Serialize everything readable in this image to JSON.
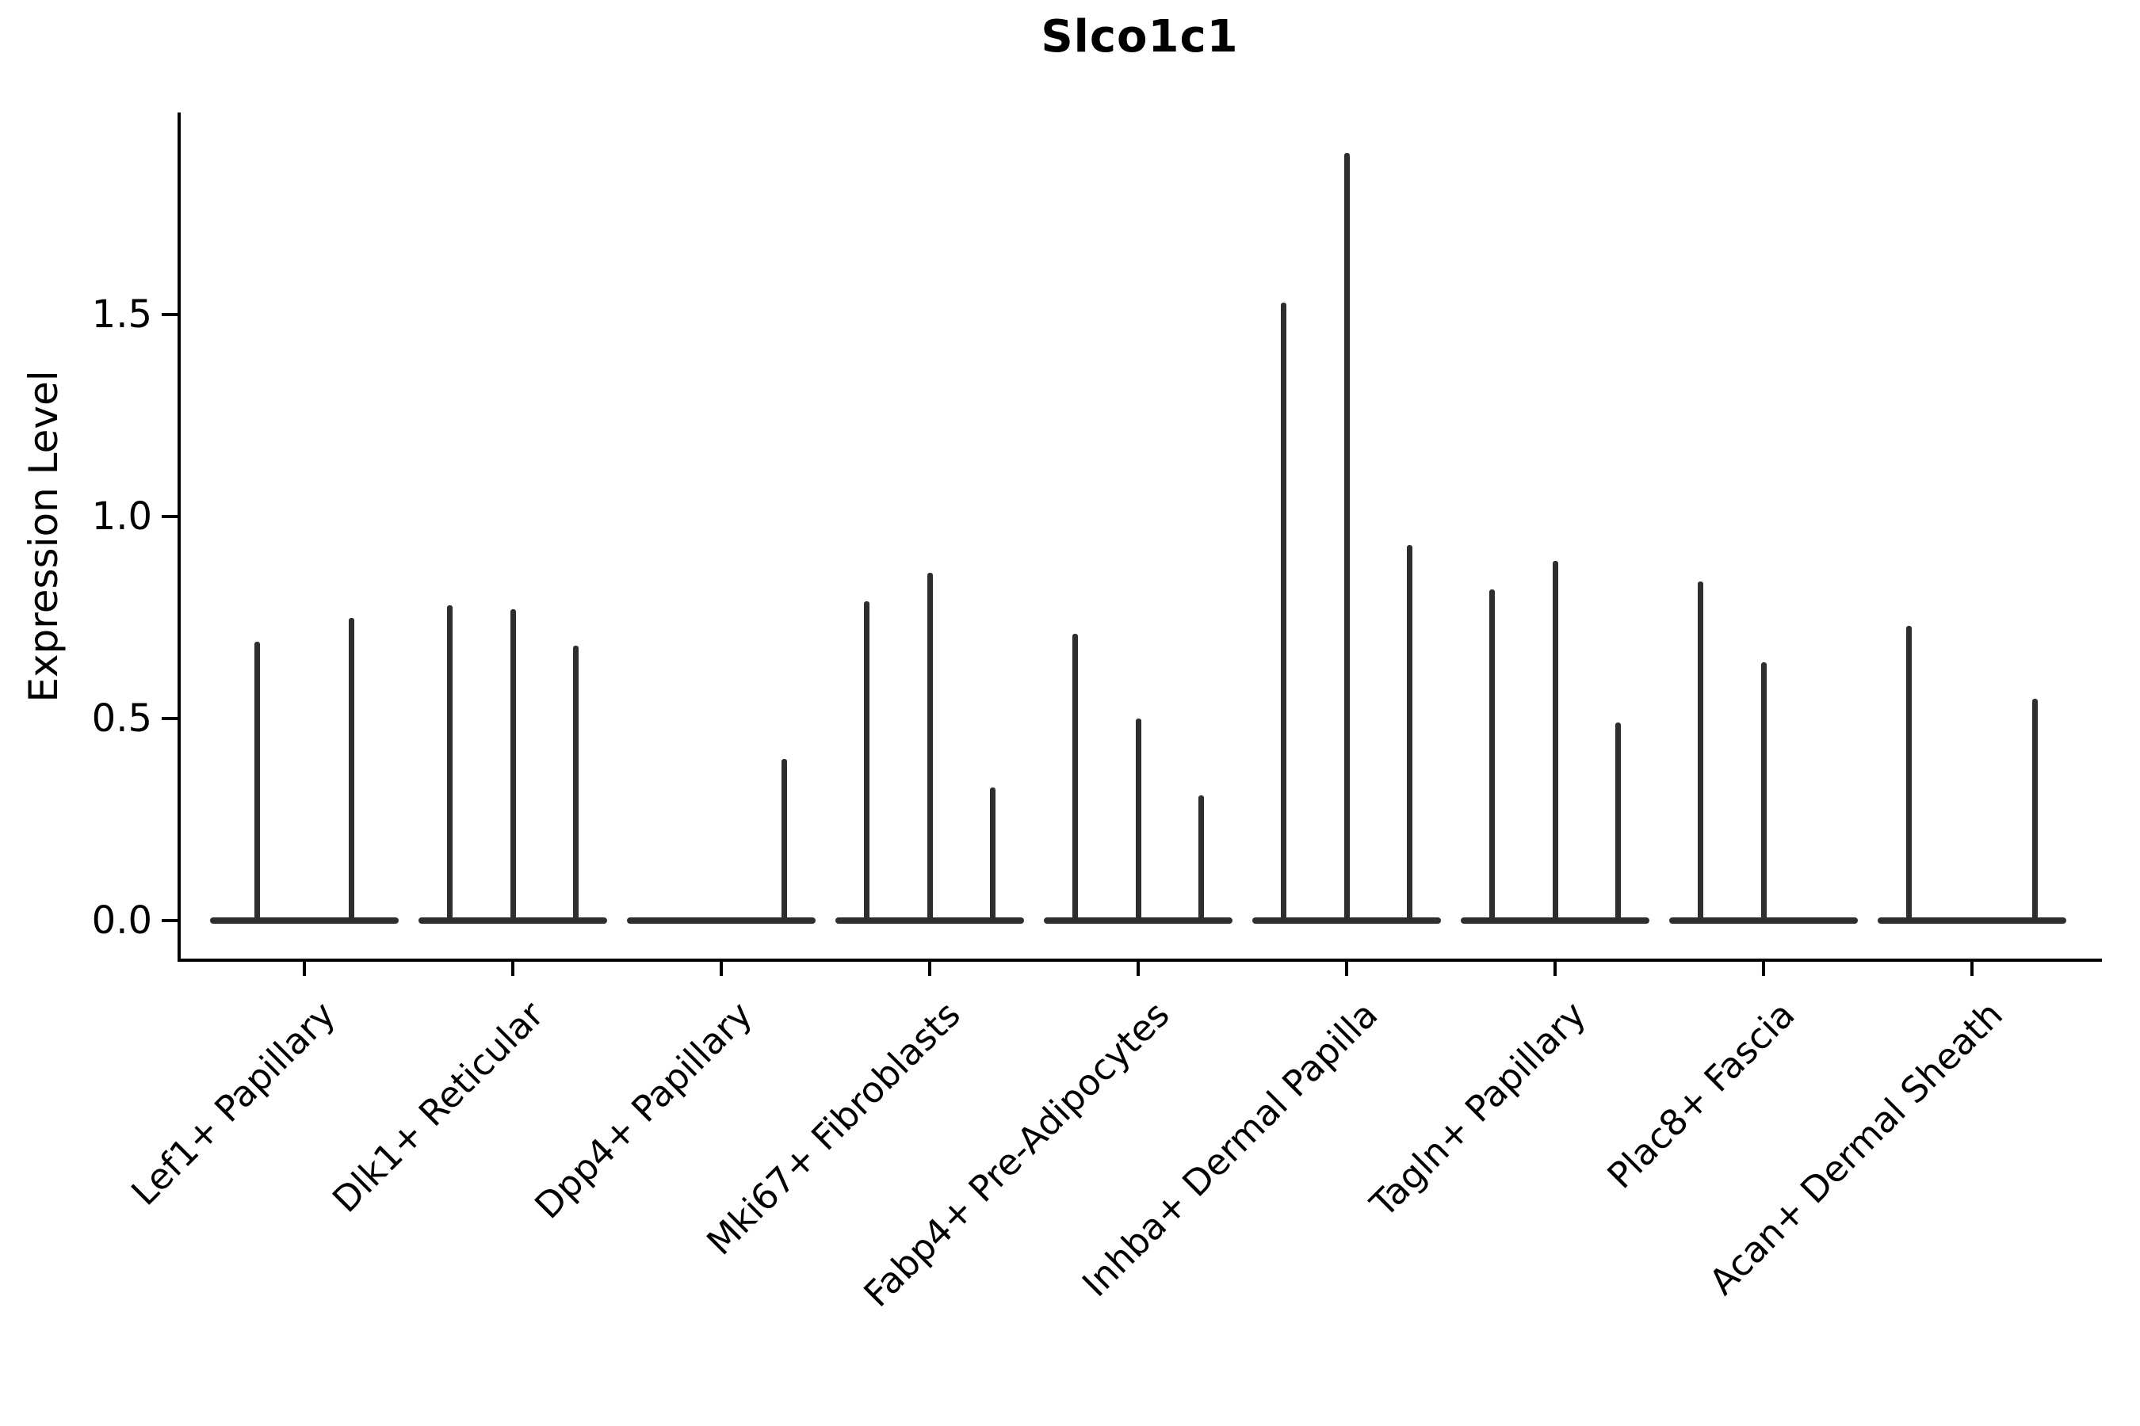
{
  "title": "Slco1c1",
  "chart_data": {
    "type": "violin",
    "title": "Slco1c1",
    "subtitle": "",
    "xlabel": "",
    "ylabel": "Expression Level",
    "ytick_labels": [
      "0.0",
      "0.5",
      "1.0",
      "1.5"
    ],
    "ytick_values": [
      0.0,
      0.5,
      1.0,
      1.5
    ],
    "ylim": [
      -0.095,
      1.995
    ],
    "grid": false,
    "legend_position": "none",
    "categories": [
      "Lef1+ Papillary",
      "Dlk1+ Reticular",
      "Dpp4+ Papillary",
      "Mki67+ Fibroblasts",
      "Fabp4+ Pre-Adipocytes",
      "Inhba+ Dermal Papilla",
      "Tagln+ Papillary",
      "Plac8+ Fascia",
      "Acan+ Dermal Sheath"
    ],
    "series": [
      {
        "category": "Lef1+ Papillary",
        "violin_max_expression": [
          0.69,
          0.75
        ]
      },
      {
        "category": "Dlk1+ Reticular",
        "violin_max_expression": [
          0.78,
          0.77,
          0.68
        ]
      },
      {
        "category": "Dpp4+ Papillary",
        "violin_max_expression": [
          0,
          0,
          0.4
        ]
      },
      {
        "category": "Mki67+ Fibroblasts",
        "violin_max_expression": [
          0.79,
          0.86,
          0.33
        ]
      },
      {
        "category": "Fabp4+ Pre-Adipocytes",
        "violin_max_expression": [
          0.71,
          0.5,
          0.31
        ]
      },
      {
        "category": "Inhba+ Dermal Papilla",
        "violin_max_expression": [
          1.53,
          1.9,
          0.93
        ]
      },
      {
        "category": "Tagln+ Papillary",
        "violin_max_expression": [
          0.82,
          0.89,
          0.49
        ]
      },
      {
        "category": "Plac8+ Fascia",
        "violin_max_expression": [
          0.84,
          0.64,
          0
        ]
      },
      {
        "category": "Acan+ Dermal Sheath",
        "violin_max_expression": [
          0.73,
          0,
          0.55
        ]
      }
    ],
    "colors": {
      "violin": "#2e2e2e",
      "axis": "#000000",
      "background": "#ffffff"
    },
    "note": "Violins are collapsed to near-zero width: each appears as a flat baseline at expression 0 with a thin vertical spike reaching the maximum expression value"
  }
}
